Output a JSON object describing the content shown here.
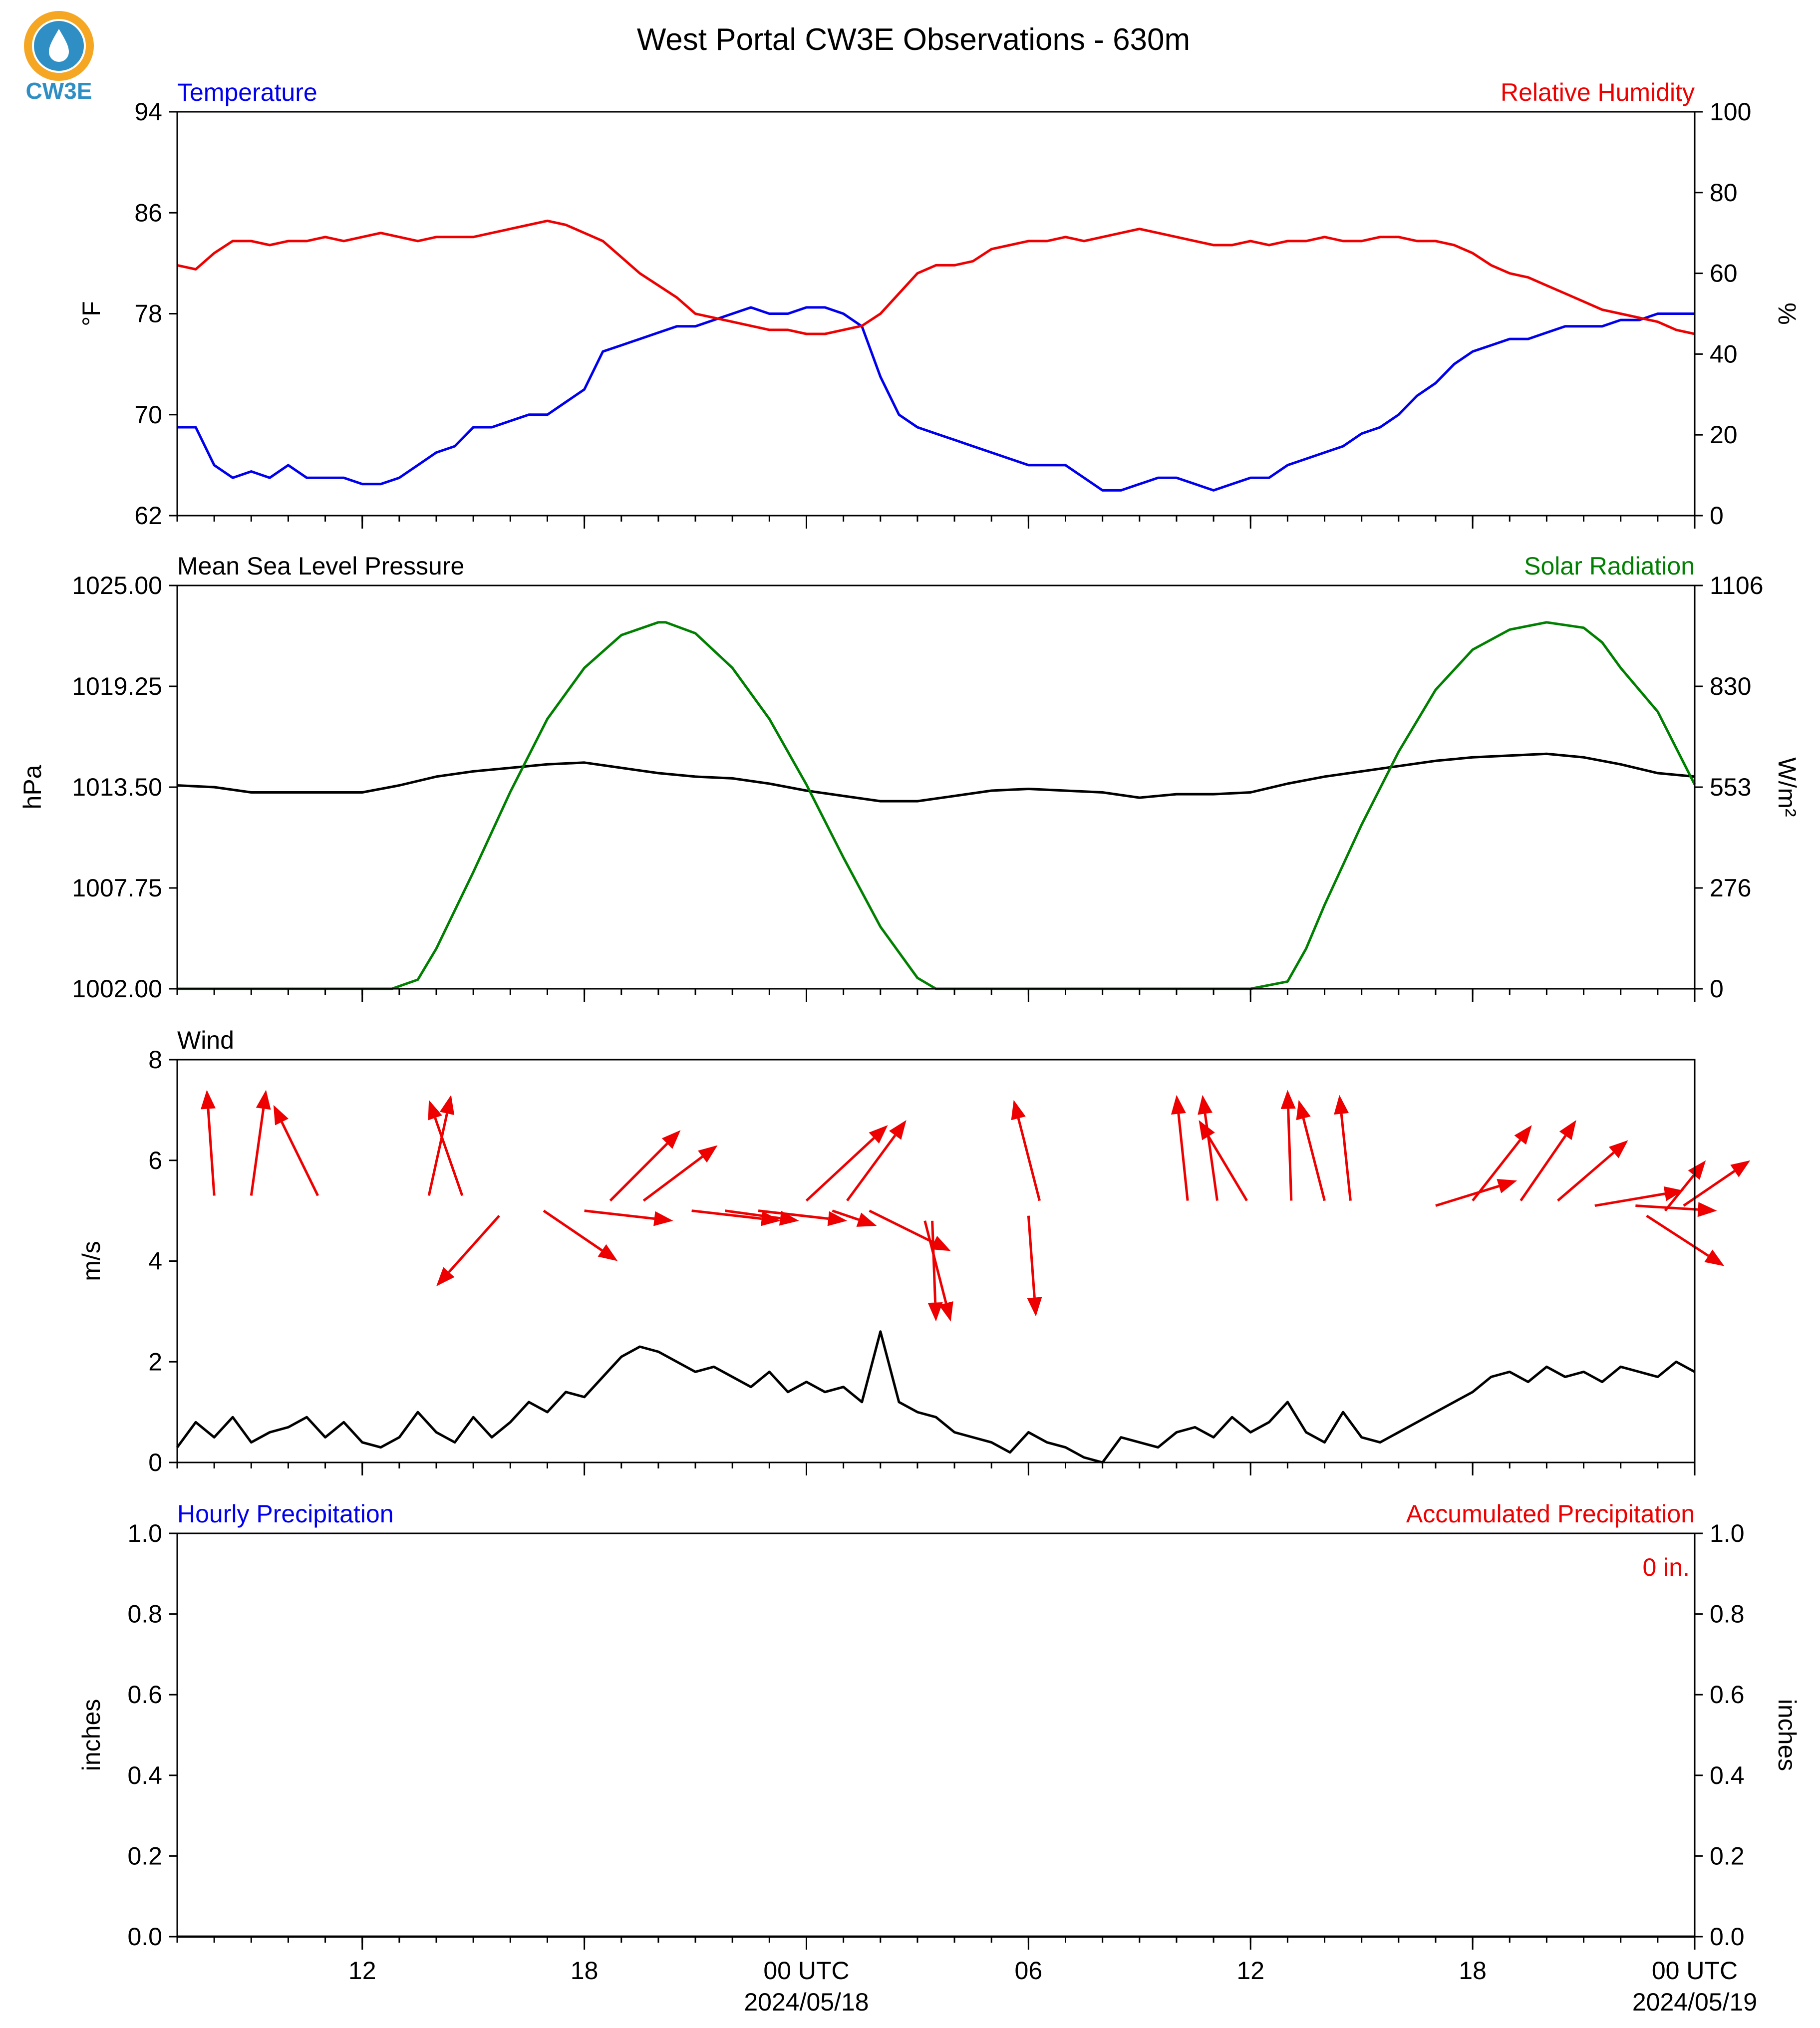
{
  "figure": {
    "title": "West Portal CW3E Observations - 630m",
    "logo_text": "CW3E",
    "colors": {
      "blue": "#0000ee",
      "red": "#ee0000",
      "green": "#008000",
      "black": "#000000",
      "logo": "#2f8fc4",
      "logo_ring": "#f5a623"
    }
  },
  "x_axis": {
    "range_hours": [
      0,
      41
    ],
    "ticks": [
      {
        "h": 5,
        "label": "12",
        "sub": ""
      },
      {
        "h": 11,
        "label": "18",
        "sub": ""
      },
      {
        "h": 17,
        "label": "00 UTC",
        "sub": "2024/05/18"
      },
      {
        "h": 23,
        "label": "06",
        "sub": ""
      },
      {
        "h": 29,
        "label": "12",
        "sub": ""
      },
      {
        "h": 35,
        "label": "18",
        "sub": ""
      },
      {
        "h": 41,
        "label": "00 UTC",
        "sub": "2024/05/19"
      }
    ],
    "minor_step_hours": 1
  },
  "chart_data": [
    {
      "type": "line",
      "panel": "temperature_humidity",
      "left_title": "Temperature",
      "right_title": "Relative Humidity",
      "ylabel_left": "°F",
      "ylabel_right": "%",
      "ylim_left": [
        62,
        94
      ],
      "ylim_right": [
        0,
        100
      ],
      "yticks_left": [
        "62",
        "70",
        "78",
        "86",
        "94"
      ],
      "yticks_right": [
        "0",
        "20",
        "40",
        "60",
        "80",
        "100"
      ],
      "series": [
        {
          "name": "Temperature",
          "axis": "left",
          "color": "#0000ee",
          "x": [
            0,
            0.5,
            1,
            1.5,
            2,
            2.5,
            3,
            3.5,
            4,
            4.5,
            5,
            5.5,
            6,
            6.5,
            7,
            7.5,
            8,
            8.5,
            9,
            9.5,
            10,
            10.5,
            11,
            11.5,
            12,
            12.5,
            13,
            13.5,
            14,
            14.5,
            15,
            15.5,
            16,
            16.5,
            17,
            17.5,
            18,
            18.5,
            19,
            19.5,
            20,
            20.5,
            21,
            21.5,
            22,
            22.5,
            23,
            23.5,
            24,
            24.5,
            25,
            25.5,
            26,
            26.5,
            27,
            27.5,
            28,
            28.5,
            29,
            29.5,
            30,
            30.5,
            31,
            31.5,
            32,
            32.5,
            33,
            33.5,
            34,
            34.5,
            35,
            35.5,
            36,
            36.5,
            37,
            37.5,
            38,
            38.5,
            39,
            39.5,
            40,
            40.5,
            41
          ],
          "y": [
            69,
            69,
            66,
            65,
            65.5,
            65,
            66,
            65,
            65,
            65,
            64.5,
            64.5,
            65,
            66,
            67,
            67.5,
            69,
            69,
            69.5,
            70,
            70,
            71,
            72,
            75,
            75.5,
            76,
            76.5,
            77,
            77,
            77.5,
            78,
            78.5,
            78,
            78,
            78.5,
            78.5,
            78,
            77,
            73,
            70,
            69,
            68.5,
            68,
            67.5,
            67,
            66.5,
            66,
            66,
            66,
            65,
            64,
            64,
            64.5,
            65,
            65,
            64.5,
            64,
            64.5,
            65,
            65,
            66,
            66.5,
            67,
            67.5,
            68.5,
            69,
            70,
            71.5,
            72.5,
            74,
            75,
            75.5,
            76,
            76,
            76.5,
            77,
            77,
            77,
            77.5,
            77.5,
            78,
            78,
            78
          ]
        },
        {
          "name": "Relative Humidity",
          "axis": "right",
          "color": "#ee0000",
          "x": [
            0,
            0.5,
            1,
            1.5,
            2,
            2.5,
            3,
            3.5,
            4,
            4.5,
            5,
            5.5,
            6,
            6.5,
            7,
            7.5,
            8,
            8.5,
            9,
            9.5,
            10,
            10.5,
            11,
            11.5,
            12,
            12.5,
            13,
            13.5,
            14,
            14.5,
            15,
            15.5,
            16,
            16.5,
            17,
            17.5,
            18,
            18.5,
            19,
            19.5,
            20,
            20.5,
            21,
            21.5,
            22,
            22.5,
            23,
            23.5,
            24,
            24.5,
            25,
            25.5,
            26,
            26.5,
            27,
            27.5,
            28,
            28.5,
            29,
            29.5,
            30,
            30.5,
            31,
            31.5,
            32,
            32.5,
            33,
            33.5,
            34,
            34.5,
            35,
            35.5,
            36,
            36.5,
            37,
            37.5,
            38,
            38.5,
            39,
            39.5,
            40,
            40.5,
            41
          ],
          "y": [
            62,
            61,
            65,
            68,
            68,
            67,
            68,
            68,
            69,
            68,
            69,
            70,
            69,
            68,
            69,
            69,
            69,
            70,
            71,
            72,
            73,
            72,
            70,
            68,
            64,
            60,
            57,
            54,
            50,
            49,
            48,
            47,
            46,
            46,
            45,
            45,
            46,
            47,
            50,
            55,
            60,
            62,
            62,
            63,
            66,
            67,
            68,
            68,
            69,
            68,
            69,
            70,
            71,
            70,
            69,
            68,
            67,
            67,
            68,
            67,
            68,
            68,
            69,
            68,
            68,
            69,
            69,
            68,
            68,
            67,
            65,
            62,
            60,
            59,
            57,
            55,
            53,
            51,
            50,
            49,
            48,
            46,
            45
          ]
        }
      ]
    },
    {
      "type": "line",
      "panel": "pressure_solar",
      "left_title": "Mean Sea Level Pressure",
      "right_title": "Solar Radiation",
      "ylabel_left": "hPa",
      "ylabel_right": "W/m²",
      "ylim_left": [
        1002.0,
        1025.0
      ],
      "ylim_right": [
        0,
        1106
      ],
      "yticks_left": [
        "1002.00",
        "1007.75",
        "1013.50",
        "1019.25",
        "1025.00"
      ],
      "yticks_right": [
        "0",
        "276",
        "553",
        "830",
        "1106"
      ],
      "series": [
        {
          "name": "Mean Sea Level Pressure",
          "axis": "left",
          "color": "#000000",
          "x": [
            0,
            1,
            2,
            3,
            4,
            5,
            6,
            7,
            8,
            9,
            10,
            11,
            12,
            13,
            14,
            15,
            16,
            17,
            18,
            19,
            20,
            21,
            22,
            23,
            24,
            25,
            26,
            27,
            28,
            29,
            30,
            31,
            32,
            33,
            34,
            35,
            36,
            37,
            38,
            39,
            40,
            41
          ],
          "y": [
            1013.6,
            1013.5,
            1013.2,
            1013.2,
            1013.2,
            1013.2,
            1013.6,
            1014.1,
            1014.4,
            1014.6,
            1014.8,
            1014.9,
            1014.6,
            1014.3,
            1014.1,
            1014.0,
            1013.7,
            1013.3,
            1013.0,
            1012.7,
            1012.7,
            1013.0,
            1013.3,
            1013.4,
            1013.3,
            1013.2,
            1012.9,
            1013.1,
            1013.1,
            1013.2,
            1013.7,
            1014.1,
            1014.4,
            1014.7,
            1015.0,
            1015.2,
            1015.3,
            1015.4,
            1015.2,
            1014.8,
            1014.3,
            1014.1
          ]
        },
        {
          "name": "Solar Radiation",
          "axis": "right",
          "color": "#008000",
          "x": [
            0,
            5.8,
            6.5,
            7,
            8,
            9,
            10,
            11,
            12,
            13,
            13.2,
            14,
            15,
            16,
            17,
            18,
            19,
            20,
            20.5,
            25,
            29,
            30,
            30.5,
            31,
            32,
            33,
            34,
            35,
            36,
            37,
            38,
            38.5,
            39,
            40,
            41
          ],
          "y": [
            0,
            0,
            25,
            110,
            320,
            540,
            740,
            880,
            970,
            1005,
            1005,
            975,
            880,
            740,
            560,
            360,
            170,
            30,
            0,
            0,
            0,
            20,
            110,
            230,
            450,
            650,
            820,
            930,
            985,
            1005,
            990,
            950,
            880,
            760,
            560
          ]
        }
      ]
    },
    {
      "type": "line",
      "panel": "wind",
      "left_title": "Wind",
      "ylabel_left": "m/s",
      "ylim_left": [
        0,
        8
      ],
      "yticks_left": [
        "0",
        "2",
        "4",
        "6",
        "8"
      ],
      "series": [
        {
          "name": "Wind",
          "axis": "left",
          "color": "#000000",
          "x": [
            0,
            0.5,
            1,
            1.5,
            2,
            2.5,
            3,
            3.5,
            4,
            4.5,
            5,
            5.5,
            6,
            6.5,
            7,
            7.5,
            8,
            8.5,
            9,
            9.5,
            10,
            10.5,
            11,
            11.5,
            12,
            12.5,
            13,
            13.5,
            14,
            14.5,
            15,
            15.5,
            16,
            16.5,
            17,
            17.5,
            18,
            18.5,
            19,
            19.5,
            20,
            20.5,
            21,
            21.5,
            22,
            22.5,
            23,
            23.5,
            24,
            24.5,
            25,
            25.5,
            26,
            26.5,
            27,
            27.5,
            28,
            28.5,
            29,
            29.5,
            30,
            30.5,
            31,
            31.5,
            32,
            32.5,
            33,
            33.5,
            34,
            34.5,
            35,
            35.5,
            36,
            36.5,
            37,
            37.5,
            38,
            38.5,
            39,
            39.5,
            40,
            40.5,
            41
          ],
          "y": [
            0.3,
            0.8,
            0.5,
            0.9,
            0.4,
            0.6,
            0.7,
            0.9,
            0.5,
            0.8,
            0.4,
            0.3,
            0.5,
            1.0,
            0.6,
            0.4,
            0.9,
            0.5,
            0.8,
            1.2,
            1.0,
            1.4,
            1.3,
            1.7,
            2.1,
            2.3,
            2.2,
            2.0,
            1.8,
            1.9,
            1.7,
            1.5,
            1.8,
            1.4,
            1.6,
            1.4,
            1.5,
            1.2,
            2.6,
            1.2,
            1.0,
            0.9,
            0.6,
            0.5,
            0.4,
            0.2,
            0.6,
            0.4,
            0.3,
            0.1,
            0.0,
            0.5,
            0.4,
            0.3,
            0.6,
            0.7,
            0.5,
            0.9,
            0.6,
            0.8,
            1.2,
            0.6,
            0.4,
            1.0,
            0.5,
            0.4,
            0.6,
            0.8,
            1.0,
            1.2,
            1.4,
            1.7,
            1.8,
            1.6,
            1.9,
            1.7,
            1.8,
            1.6,
            1.9,
            1.8,
            1.7,
            2.0,
            1.8
          ]
        }
      ],
      "wind_vectors": [
        {
          "x": 1.0,
          "y": 5.3,
          "dx": -0.2,
          "dy": 2.1
        },
        {
          "x": 2.0,
          "y": 5.3,
          "dx": 0.4,
          "dy": 2.1
        },
        {
          "x": 3.8,
          "y": 5.3,
          "dx": -1.2,
          "dy": 1.8
        },
        {
          "x": 6.8,
          "y": 5.3,
          "dx": 0.6,
          "dy": 2.0
        },
        {
          "x": 7.7,
          "y": 5.3,
          "dx": -0.9,
          "dy": 1.9
        },
        {
          "x": 8.7,
          "y": 4.9,
          "dx": -1.7,
          "dy": -1.4
        },
        {
          "x": 11.7,
          "y": 5.2,
          "dx": 1.9,
          "dy": 1.4
        },
        {
          "x": 12.6,
          "y": 5.2,
          "dx": 2.0,
          "dy": 1.1
        },
        {
          "x": 11.0,
          "y": 5.0,
          "dx": 2.4,
          "dy": -0.2
        },
        {
          "x": 9.9,
          "y": 5.0,
          "dx": 2.0,
          "dy": -1.0
        },
        {
          "x": 13.9,
          "y": 5.0,
          "dx": 2.4,
          "dy": -0.2
        },
        {
          "x": 14.8,
          "y": 5.0,
          "dx": 2.0,
          "dy": -0.2
        },
        {
          "x": 15.7,
          "y": 5.0,
          "dx": 2.4,
          "dy": -0.2
        },
        {
          "x": 17.0,
          "y": 5.2,
          "dx": 2.2,
          "dy": 1.5
        },
        {
          "x": 18.1,
          "y": 5.2,
          "dx": 1.6,
          "dy": 1.6
        },
        {
          "x": 17.7,
          "y": 5.0,
          "dx": 1.2,
          "dy": -0.3
        },
        {
          "x": 18.7,
          "y": 5.0,
          "dx": 2.2,
          "dy": -0.8
        },
        {
          "x": 20.2,
          "y": 4.8,
          "dx": 0.7,
          "dy": -2.0
        },
        {
          "x": 20.4,
          "y": 4.8,
          "dx": 0.1,
          "dy": -2.0
        },
        {
          "x": 23.3,
          "y": 5.2,
          "dx": -0.7,
          "dy": 2.0
        },
        {
          "x": 23.0,
          "y": 4.9,
          "dx": 0.2,
          "dy": -2.0
        },
        {
          "x": 27.3,
          "y": 5.2,
          "dx": -0.3,
          "dy": 2.1
        },
        {
          "x": 28.1,
          "y": 5.2,
          "dx": -0.4,
          "dy": 2.1
        },
        {
          "x": 28.9,
          "y": 5.2,
          "dx": -1.3,
          "dy": 1.6
        },
        {
          "x": 30.1,
          "y": 5.2,
          "dx": -0.1,
          "dy": 2.2
        },
        {
          "x": 31.0,
          "y": 5.2,
          "dx": -0.7,
          "dy": 2.0
        },
        {
          "x": 31.7,
          "y": 5.2,
          "dx": -0.3,
          "dy": 2.1
        },
        {
          "x": 35.0,
          "y": 5.2,
          "dx": 1.6,
          "dy": 1.5
        },
        {
          "x": 36.3,
          "y": 5.2,
          "dx": 1.5,
          "dy": 1.6
        },
        {
          "x": 37.3,
          "y": 5.2,
          "dx": 1.9,
          "dy": 1.2
        },
        {
          "x": 34.0,
          "y": 5.1,
          "dx": 2.2,
          "dy": 0.5
        },
        {
          "x": 38.3,
          "y": 5.1,
          "dx": 2.4,
          "dy": 0.3
        },
        {
          "x": 39.4,
          "y": 5.1,
          "dx": 2.2,
          "dy": -0.1
        },
        {
          "x": 39.7,
          "y": 4.9,
          "dx": 2.1,
          "dy": -1.0
        },
        {
          "x": 40.7,
          "y": 5.1,
          "dx": 1.8,
          "dy": 0.9
        },
        {
          "x": 40.2,
          "y": 5.0,
          "dx": 1.1,
          "dy": 1.0
        }
      ]
    },
    {
      "type": "line",
      "panel": "precipitation",
      "left_title": "Hourly Precipitation",
      "right_title": "Accumulated Precipitation",
      "ylabel_left": "inches",
      "ylabel_right": "inches",
      "ylim_left": [
        0,
        1
      ],
      "ylim_right": [
        0,
        1
      ],
      "yticks_left": [
        "0.0",
        "0.2",
        "0.4",
        "0.6",
        "0.8",
        "1.0"
      ],
      "yticks_right": [
        "0.0",
        "0.2",
        "0.4",
        "0.6",
        "0.8",
        "1.0"
      ],
      "annotation": "0 in.",
      "series": [
        {
          "name": "Hourly Precipitation",
          "axis": "left",
          "color": "#0000ee",
          "x": [
            0,
            41
          ],
          "y": [
            0,
            0
          ]
        },
        {
          "name": "Accumulated Precipitation",
          "axis": "right",
          "color": "#8b0000",
          "x": [
            0,
            41
          ],
          "y": [
            0,
            0
          ]
        }
      ]
    }
  ]
}
